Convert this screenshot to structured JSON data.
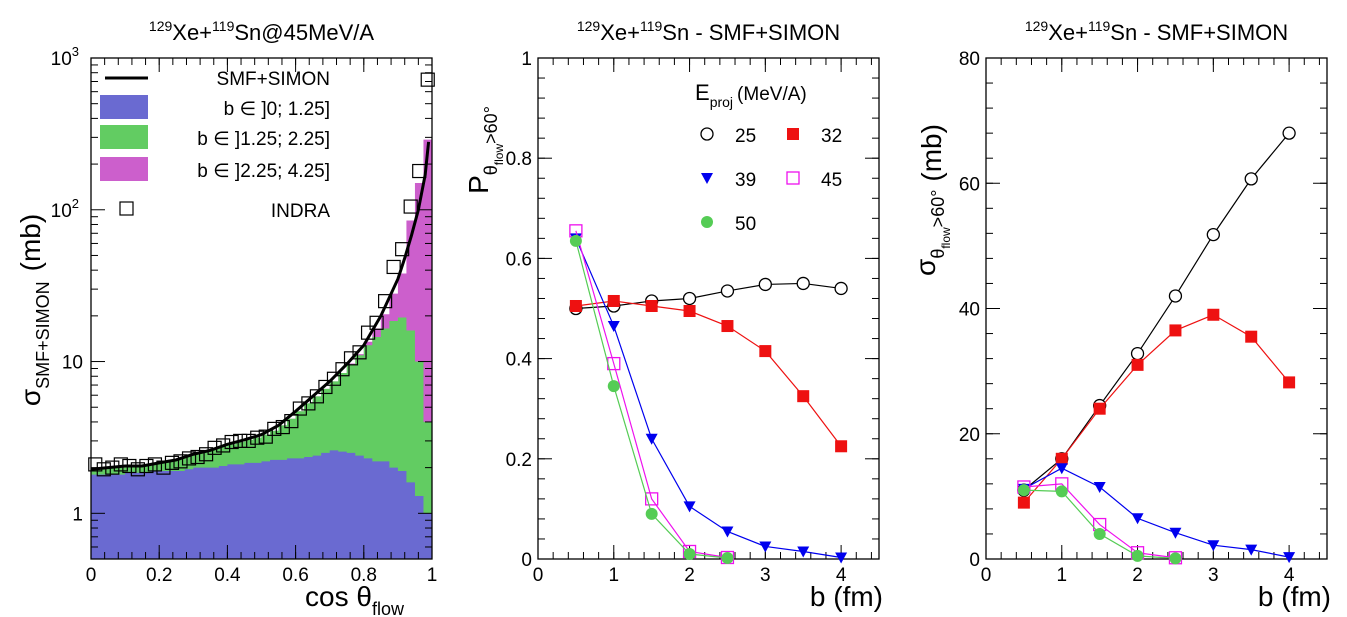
{
  "colors": {
    "blue_fill": "#6a6ad1",
    "green_fill": "#62cc62",
    "magenta_fill": "#cc5fcc",
    "red": "#ee1111",
    "blue": "#0000ee",
    "magenta": "#ee11ee",
    "green": "#55cc55",
    "black": "#000000"
  },
  "chart_data": [
    {
      "type": "area",
      "title_parts": [
        "129",
        "Xe+",
        "119",
        "Sn@45MeV/A"
      ],
      "xlabel": "cos θ",
      "xlabel_sub": "flow",
      "ylabel": "σ",
      "ylabel_sub": "SMF+SIMON",
      "ylabel_unit": "(mb)",
      "x_scale": "linear",
      "y_scale": "log",
      "xlim": [
        0,
        1
      ],
      "ylim": [
        0.5,
        1000
      ],
      "x_ticks": [
        {
          "v": 0,
          "label": "0"
        },
        {
          "v": 0.2,
          "label": "0.2"
        },
        {
          "v": 0.4,
          "label": "0.4"
        },
        {
          "v": 0.6,
          "label": "0.6"
        },
        {
          "v": 0.8,
          "label": "0.8"
        },
        {
          "v": 1,
          "label": "1"
        }
      ],
      "y_ticks": [
        {
          "v": 1,
          "label": "1"
        },
        {
          "v": 10,
          "label": "10"
        }
      ],
      "y_pow_ticks": [
        {
          "v": 100,
          "base": "10",
          "exp": "2"
        },
        {
          "v": 1000,
          "base": "10",
          "exp": "3"
        }
      ],
      "bin_edges": [
        0,
        0.025,
        0.05,
        0.075,
        0.1,
        0.125,
        0.15,
        0.175,
        0.2,
        0.225,
        0.25,
        0.275,
        0.3,
        0.325,
        0.35,
        0.375,
        0.4,
        0.425,
        0.45,
        0.475,
        0.5,
        0.525,
        0.55,
        0.575,
        0.6,
        0.625,
        0.65,
        0.675,
        0.7,
        0.725,
        0.75,
        0.775,
        0.8,
        0.825,
        0.85,
        0.875,
        0.9,
        0.925,
        0.95,
        0.975,
        1
      ],
      "stack": [
        {
          "name": "b ∈ ]0; 1.25]",
          "color": "#6a6ad1",
          "values": [
            1.8,
            1.8,
            1.8,
            1.8,
            1.85,
            1.85,
            1.85,
            1.9,
            1.9,
            1.9,
            1.9,
            1.95,
            2.0,
            2.0,
            2.0,
            2.05,
            2.1,
            2.1,
            2.15,
            2.15,
            2.2,
            2.25,
            2.25,
            2.3,
            2.3,
            2.35,
            2.4,
            2.5,
            2.6,
            2.55,
            2.5,
            2.4,
            2.3,
            2.2,
            2.2,
            2.0,
            1.9,
            1.6,
            1.3,
            1.0
          ]
        },
        {
          "name": "b ∈ ]1.25; 2.25]",
          "color": "#62cc62",
          "values": [
            1.95,
            1.95,
            2.0,
            2.0,
            2.05,
            2.05,
            2.1,
            2.15,
            2.2,
            2.25,
            2.3,
            2.4,
            2.5,
            2.6,
            2.65,
            2.75,
            2.85,
            2.95,
            3.05,
            3.15,
            3.3,
            3.5,
            3.8,
            4.2,
            4.7,
            5.3,
            5.9,
            6.6,
            7.4,
            8.4,
            9.6,
            11.0,
            12.8,
            14.5,
            16.5,
            18.5,
            19.5,
            16.0,
            10.0,
            4.0
          ]
        },
        {
          "name": "b ∈ ]2.25; 4.25]",
          "color": "#cc5fcc",
          "values": [
            1.95,
            1.95,
            2.0,
            2.0,
            2.05,
            2.05,
            2.1,
            2.15,
            2.2,
            2.25,
            2.3,
            2.4,
            2.5,
            2.6,
            2.65,
            2.75,
            2.85,
            2.95,
            3.05,
            3.15,
            3.3,
            3.5,
            3.8,
            4.2,
            4.7,
            5.3,
            5.9,
            6.6,
            7.4,
            8.4,
            9.7,
            11.2,
            13.5,
            16.5,
            20.5,
            28.0,
            38.0,
            85.0,
            150.0,
            290.0
          ]
        }
      ],
      "curve": {
        "name": "SMF+SIMON",
        "x": [
          0,
          0.05,
          0.1,
          0.15,
          0.2,
          0.25,
          0.3,
          0.35,
          0.4,
          0.45,
          0.5,
          0.55,
          0.6,
          0.65,
          0.7,
          0.75,
          0.8,
          0.85,
          0.9,
          0.92,
          0.94,
          0.96,
          0.98,
          0.99
        ],
        "y": [
          1.95,
          2.0,
          2.05,
          2.05,
          2.15,
          2.25,
          2.45,
          2.6,
          2.85,
          3.05,
          3.3,
          3.8,
          4.7,
          5.9,
          7.4,
          9.6,
          12.8,
          20.0,
          35.0,
          48.0,
          68.0,
          100.0,
          170.0,
          280.0
        ]
      },
      "points": {
        "name": "INDRA",
        "x": [
          0.0125,
          0.0375,
          0.0625,
          0.0875,
          0.1125,
          0.1375,
          0.1625,
          0.1875,
          0.2125,
          0.2375,
          0.2625,
          0.2875,
          0.3125,
          0.3375,
          0.3625,
          0.3875,
          0.4125,
          0.4375,
          0.4625,
          0.4875,
          0.5125,
          0.5375,
          0.5625,
          0.5875,
          0.6125,
          0.6375,
          0.6625,
          0.6875,
          0.7125,
          0.7375,
          0.7625,
          0.7875,
          0.8125,
          0.8375,
          0.8625,
          0.8875,
          0.9125,
          0.9375,
          0.9625,
          0.9875
        ],
        "y": [
          2.1,
          1.95,
          2.0,
          2.1,
          2.05,
          1.95,
          2.05,
          2.1,
          2.0,
          2.15,
          2.2,
          2.3,
          2.35,
          2.45,
          2.7,
          2.8,
          2.95,
          3.0,
          3.0,
          3.15,
          3.2,
          3.6,
          3.7,
          4.05,
          4.9,
          5.3,
          5.9,
          6.8,
          7.7,
          8.9,
          10.5,
          11.5,
          15.5,
          18.0,
          25.0,
          42.0,
          55.0,
          105.0,
          180.0,
          720.0
        ]
      },
      "legend": [
        {
          "label": "SMF+SIMON",
          "kind": "line"
        },
        {
          "label": "b ∈ ]0; 1.25]",
          "kind": "box",
          "color": "#6a6ad1"
        },
        {
          "label": "b ∈ ]1.25; 2.25]",
          "kind": "box",
          "color": "#62cc62"
        },
        {
          "label": "b ∈ ]2.25; 4.25]",
          "kind": "box",
          "color": "#cc5fcc"
        },
        {
          "label": "INDRA",
          "kind": "open-square"
        }
      ]
    },
    {
      "type": "line",
      "title_parts": [
        "129",
        "Xe+",
        "119",
        "Sn - SMF+SIMON"
      ],
      "xlabel": "b (fm)",
      "ylabel": "P",
      "ylabel_sub": "θ",
      "ylabel_subsub": "flow",
      "ylabel_suffix": ">60°",
      "xlim": [
        0,
        4.5
      ],
      "ylim": [
        0,
        1
      ],
      "x_ticks": [
        {
          "v": 0,
          "label": "0"
        },
        {
          "v": 1,
          "label": "1"
        },
        {
          "v": 2,
          "label": "2"
        },
        {
          "v": 3,
          "label": "3"
        },
        {
          "v": 4,
          "label": "4"
        }
      ],
      "y_ticks": [
        {
          "v": 0,
          "label": "0"
        },
        {
          "v": 0.2,
          "label": "0.2"
        },
        {
          "v": 0.4,
          "label": "0.4"
        },
        {
          "v": 0.6,
          "label": "0.6"
        },
        {
          "v": 0.8,
          "label": "0.8"
        },
        {
          "v": 1,
          "label": "1"
        }
      ],
      "legend_title": "E",
      "legend_title_sub": "proj",
      "legend_title_unit": "(MeV/A)",
      "series": [
        {
          "name": "25",
          "color": "#000000",
          "marker": "open-circle",
          "errorbars": true,
          "x": [
            0.5,
            1.0,
            1.5,
            2.0,
            2.5,
            3.0,
            3.5,
            4.0
          ],
          "y": [
            0.5,
            0.505,
            0.515,
            0.52,
            0.535,
            0.548,
            0.55,
            0.54
          ]
        },
        {
          "name": "32",
          "color": "#ee1111",
          "marker": "filled-square",
          "x": [
            0.5,
            1.0,
            1.5,
            2.0,
            2.5,
            3.0,
            3.5,
            4.0
          ],
          "y": [
            0.505,
            0.515,
            0.505,
            0.495,
            0.465,
            0.415,
            0.325,
            0.225
          ]
        },
        {
          "name": "39",
          "color": "#0000ee",
          "marker": "filled-triangle-down",
          "x": [
            0.5,
            1.0,
            1.5,
            2.0,
            2.5,
            3.0,
            3.5,
            4.0
          ],
          "y": [
            0.64,
            0.465,
            0.24,
            0.105,
            0.055,
            0.025,
            0.015,
            0.003
          ]
        },
        {
          "name": "45",
          "color": "#ee11ee",
          "marker": "open-square",
          "x": [
            0.5,
            1.0,
            1.5,
            2.0,
            2.5
          ],
          "y": [
            0.655,
            0.39,
            0.12,
            0.015,
            0.003
          ]
        },
        {
          "name": "50",
          "color": "#55cc55",
          "marker": "filled-circle",
          "x": [
            0.5,
            1.0,
            1.5,
            2.0,
            2.5
          ],
          "y": [
            0.635,
            0.345,
            0.09,
            0.01,
            0.002
          ]
        }
      ]
    },
    {
      "type": "line",
      "title_parts": [
        "129",
        "Xe+",
        "119",
        "Sn - SMF+SIMON"
      ],
      "xlabel": "b (fm)",
      "ylabel": "σ",
      "ylabel_sub": "θ",
      "ylabel_subsub": "flow",
      "ylabel_suffix": ">60°",
      "ylabel_unit": "(mb)",
      "xlim": [
        0,
        4.5
      ],
      "ylim": [
        0,
        80
      ],
      "x_ticks": [
        {
          "v": 0,
          "label": "0"
        },
        {
          "v": 1,
          "label": "1"
        },
        {
          "v": 2,
          "label": "2"
        },
        {
          "v": 3,
          "label": "3"
        },
        {
          "v": 4,
          "label": "4"
        }
      ],
      "y_ticks": [
        {
          "v": 0,
          "label": "0"
        },
        {
          "v": 20,
          "label": "20"
        },
        {
          "v": 40,
          "label": "40"
        },
        {
          "v": 60,
          "label": "60"
        },
        {
          "v": 80,
          "label": "80"
        }
      ],
      "series": [
        {
          "name": "25",
          "color": "#000000",
          "marker": "open-circle",
          "errorbars": true,
          "x": [
            0.5,
            1.0,
            1.5,
            2.0,
            2.5,
            3.0,
            3.5,
            4.0
          ],
          "y": [
            11.0,
            16.0,
            24.5,
            32.8,
            42.0,
            51.8,
            60.7,
            68.0
          ]
        },
        {
          "name": "32",
          "color": "#ee1111",
          "marker": "filled-square",
          "x": [
            0.5,
            1.0,
            1.5,
            2.0,
            2.5,
            3.0,
            3.5,
            4.0
          ],
          "y": [
            9.0,
            16.0,
            24.0,
            31.0,
            36.5,
            39.0,
            35.5,
            28.2
          ]
        },
        {
          "name": "39",
          "color": "#0000ee",
          "marker": "filled-triangle-down",
          "x": [
            0.5,
            1.0,
            1.5,
            2.0,
            2.5,
            3.0,
            3.5,
            4.0
          ],
          "y": [
            11.2,
            14.5,
            11.5,
            6.5,
            4.2,
            2.2,
            1.5,
            0.3
          ]
        },
        {
          "name": "45",
          "color": "#ee11ee",
          "marker": "open-square",
          "x": [
            0.5,
            1.0,
            1.5,
            2.0,
            2.5
          ],
          "y": [
            11.5,
            12.0,
            5.5,
            1.0,
            0.2
          ]
        },
        {
          "name": "50",
          "color": "#55cc55",
          "marker": "filled-circle",
          "x": [
            0.5,
            1.0,
            1.5,
            2.0,
            2.5
          ],
          "y": [
            11.0,
            10.8,
            4.0,
            0.5,
            0.1
          ]
        }
      ]
    }
  ]
}
